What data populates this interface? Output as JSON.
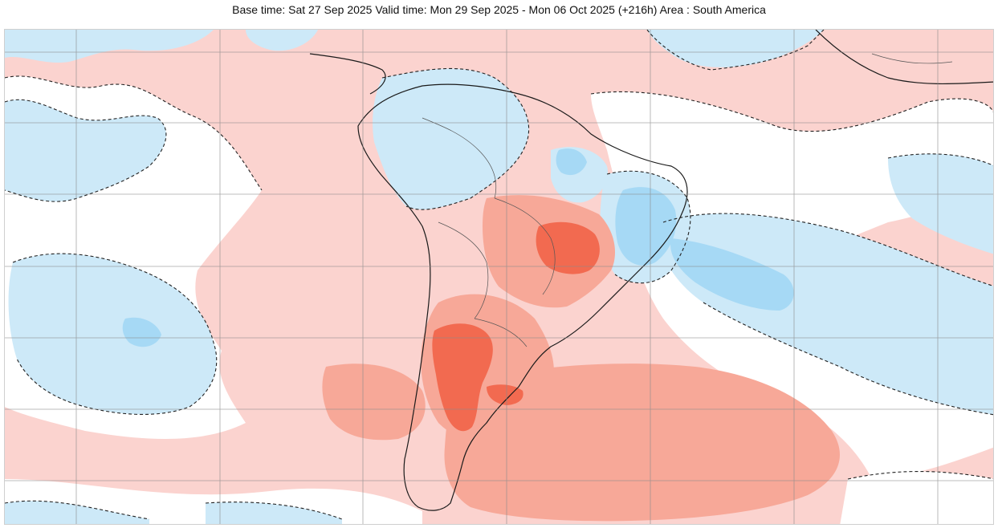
{
  "header": {
    "title": "Base time: Sat 27 Sep 2025 Valid time: Mon 29 Sep 2025 - Mon 06 Oct 2025 (+216h) Area : South America"
  },
  "map": {
    "area": "South America",
    "colors": {
      "positive_weak": "#fbd3cf",
      "positive_moderate": "#f7a898",
      "positive_strong": "#f26a50",
      "negative_weak": "#cde9f8",
      "negative_moderate": "#a6d9f5",
      "neutral": "#ffffff",
      "coastline": "#1a1a1a",
      "gridline": "#8a8a8a"
    }
  }
}
